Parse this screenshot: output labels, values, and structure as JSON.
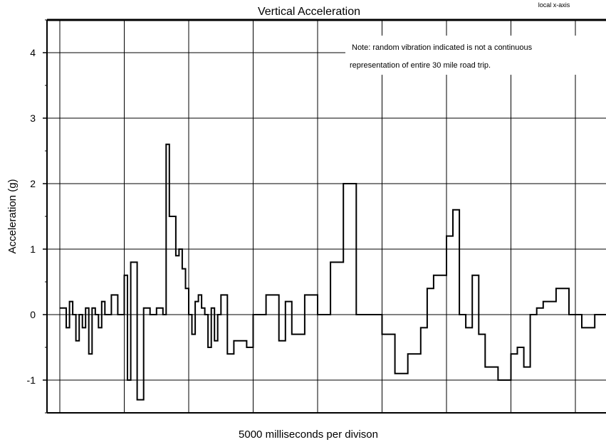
{
  "chart_data": {
    "type": "line",
    "title": "Vertical Acceleration",
    "corner_label": "local x-axis",
    "xlabel": "5000 milliseconds per divison",
    "ylabel": "Acceleration (g)",
    "note_lines": [
      "Note:  random vibration indicated is not a continuous",
      "representation of entire 30 mile road trip."
    ],
    "ylim": [
      -1.5,
      4.5
    ],
    "yticks": [
      -1,
      0,
      1,
      2,
      3,
      4
    ],
    "ytick_labels": [
      "-1",
      "0",
      "1",
      "2",
      "3",
      "4"
    ],
    "x_divisions": 8.6,
    "grid": true,
    "series": [
      {
        "x": [
          0,
          0.1,
          0.15,
          0.2,
          0.25,
          0.3,
          0.35,
          0.4,
          0.45,
          0.5,
          0.55,
          0.6,
          0.65,
          0.7,
          0.8,
          0.9,
          1.0,
          1.05,
          1.1,
          1.2,
          1.3,
          1.4,
          1.5,
          1.6,
          1.65,
          1.7,
          1.8,
          1.85,
          1.9,
          1.95,
          2.0,
          2.05,
          2.1,
          2.15,
          2.2,
          2.25,
          2.3,
          2.35,
          2.4,
          2.45,
          2.5,
          2.6,
          2.7,
          2.9,
          3.0,
          3.2,
          3.4,
          3.5,
          3.6,
          3.8,
          4.0,
          4.2,
          4.4,
          4.6,
          4.8,
          5.0,
          5.2,
          5.4,
          5.6,
          5.7,
          5.8,
          5.9,
          6.0,
          6.1,
          6.2,
          6.3,
          6.4,
          6.5,
          6.6,
          6.8,
          7.0,
          7.1,
          7.2,
          7.3,
          7.4,
          7.5,
          7.7,
          7.9,
          8.1,
          8.3,
          8.5,
          8.6
        ],
        "y": [
          0.1,
          -0.2,
          0.2,
          0.0,
          -0.4,
          0.0,
          -0.2,
          0.1,
          -0.6,
          0.1,
          0.0,
          -0.2,
          0.2,
          0.0,
          0.3,
          0.0,
          0.6,
          -1.0,
          0.8,
          -1.3,
          0.1,
          0.0,
          0.1,
          0.0,
          2.6,
          1.5,
          0.9,
          1.0,
          0.7,
          0.4,
          0.0,
          -0.3,
          0.2,
          0.3,
          0.1,
          0.0,
          -0.5,
          0.1,
          -0.4,
          0.0,
          0.3,
          -0.6,
          -0.4,
          -0.5,
          0.0,
          0.3,
          -0.4,
          0.2,
          -0.3,
          0.3,
          0.0,
          0.8,
          2.0,
          0.0,
          0.0,
          -0.3,
          -0.9,
          -0.6,
          -0.2,
          0.4,
          0.6,
          0.6,
          1.2,
          1.6,
          0.0,
          -0.2,
          0.6,
          -0.3,
          -0.8,
          -1.0,
          -0.6,
          -0.5,
          -0.8,
          0.0,
          0.1,
          0.2,
          0.4,
          0.0,
          -0.2,
          0.0,
          0.3,
          0.0
        ]
      }
    ]
  }
}
